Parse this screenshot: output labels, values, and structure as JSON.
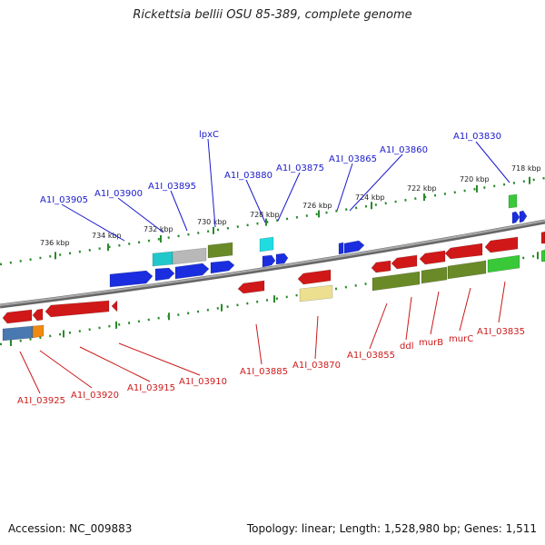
{
  "title": "Rickettsia bellii OSU 85-389, complete genome",
  "footer": {
    "accession": "Accession: NC_009883",
    "summary": "Topology: linear; Length: 1,528,980 bp; Genes: 1,511"
  },
  "colors": {
    "top_label": "#1a1acc",
    "bottom_label": "#cc1a1a",
    "ruler": "#2a8a2a",
    "backbone": "#888888"
  },
  "scale": {
    "labels": [
      "736 kbp",
      "734 kbp",
      "732 kbp",
      "730 kbp",
      "728 kbp",
      "726 kbp",
      "724 kbp",
      "722 kbp",
      "720 kbp",
      "718 kbp"
    ]
  },
  "top_genes": [
    {
      "name": "A1I_03905"
    },
    {
      "name": "A1I_03900"
    },
    {
      "name": "A1I_03895"
    },
    {
      "name": "lpxC"
    },
    {
      "name": "A1I_03880"
    },
    {
      "name": "A1I_03875"
    },
    {
      "name": "A1I_03865"
    },
    {
      "name": "A1I_03860"
    },
    {
      "name": "A1I_03830"
    }
  ],
  "bottom_genes": [
    {
      "name": "A1I_03925"
    },
    {
      "name": "A1I_03920"
    },
    {
      "name": "A1I_03915"
    },
    {
      "name": "A1I_03910"
    },
    {
      "name": "A1I_03885"
    },
    {
      "name": "A1I_03870"
    },
    {
      "name": "A1I_03855"
    },
    {
      "name": "ddl"
    },
    {
      "name": "murB"
    },
    {
      "name": "murC"
    },
    {
      "name": "A1I_03835"
    }
  ],
  "features": [
    {
      "id": "f1",
      "color": "#d01818",
      "strand": "-"
    },
    {
      "id": "f2",
      "color": "#d01818",
      "strand": "-"
    },
    {
      "id": "f3",
      "color": "#d01818",
      "strand": "-"
    },
    {
      "id": "f4",
      "color": "#4a78b0",
      "strand": "-"
    },
    {
      "id": "f5",
      "color": "#f08a10",
      "strand": "-"
    },
    {
      "id": "f6",
      "color": "#20c8cc",
      "strand": "+"
    },
    {
      "id": "f7",
      "color": "#b8b8b8",
      "strand": "+"
    },
    {
      "id": "f8",
      "color": "#6a8a28",
      "strand": "+"
    },
    {
      "id": "f9",
      "color": "#1a2ee0",
      "strand": "+"
    },
    {
      "id": "f10",
      "color": "#1a2ee0",
      "strand": "+"
    },
    {
      "id": "f11",
      "color": "#1a2ee0",
      "strand": "+"
    },
    {
      "id": "f12",
      "color": "#1a2ee0",
      "strand": "+"
    },
    {
      "id": "f13",
      "color": "#20dce0",
      "strand": "+"
    },
    {
      "id": "f14",
      "color": "#1a2ee0",
      "strand": "+"
    },
    {
      "id": "f15",
      "color": "#1a2ee0",
      "strand": "+"
    },
    {
      "id": "f16",
      "color": "#d01818",
      "strand": "-"
    },
    {
      "id": "f17",
      "color": "#d01818",
      "strand": "-"
    },
    {
      "id": "f18",
      "color": "#ece090",
      "strand": "-"
    },
    {
      "id": "f19",
      "color": "#1a2ee0",
      "strand": "+"
    },
    {
      "id": "f20",
      "color": "#d01818",
      "strand": "-"
    },
    {
      "id": "f21",
      "color": "#d01818",
      "strand": "-"
    },
    {
      "id": "f22",
      "color": "#d01818",
      "strand": "-"
    },
    {
      "id": "f23",
      "color": "#d01818",
      "strand": "-"
    },
    {
      "id": "f24",
      "color": "#d01818",
      "strand": "-"
    },
    {
      "id": "f25",
      "color": "#6a8a28",
      "strand": "-"
    },
    {
      "id": "f26",
      "color": "#6a8a28",
      "strand": "-"
    },
    {
      "id": "f27",
      "color": "#6a8a28",
      "strand": "-"
    },
    {
      "id": "f28",
      "color": "#38c838",
      "strand": "-"
    },
    {
      "id": "f29",
      "color": "#38c838",
      "strand": "+"
    },
    {
      "id": "f30",
      "color": "#1a2ee0",
      "strand": "+"
    }
  ]
}
